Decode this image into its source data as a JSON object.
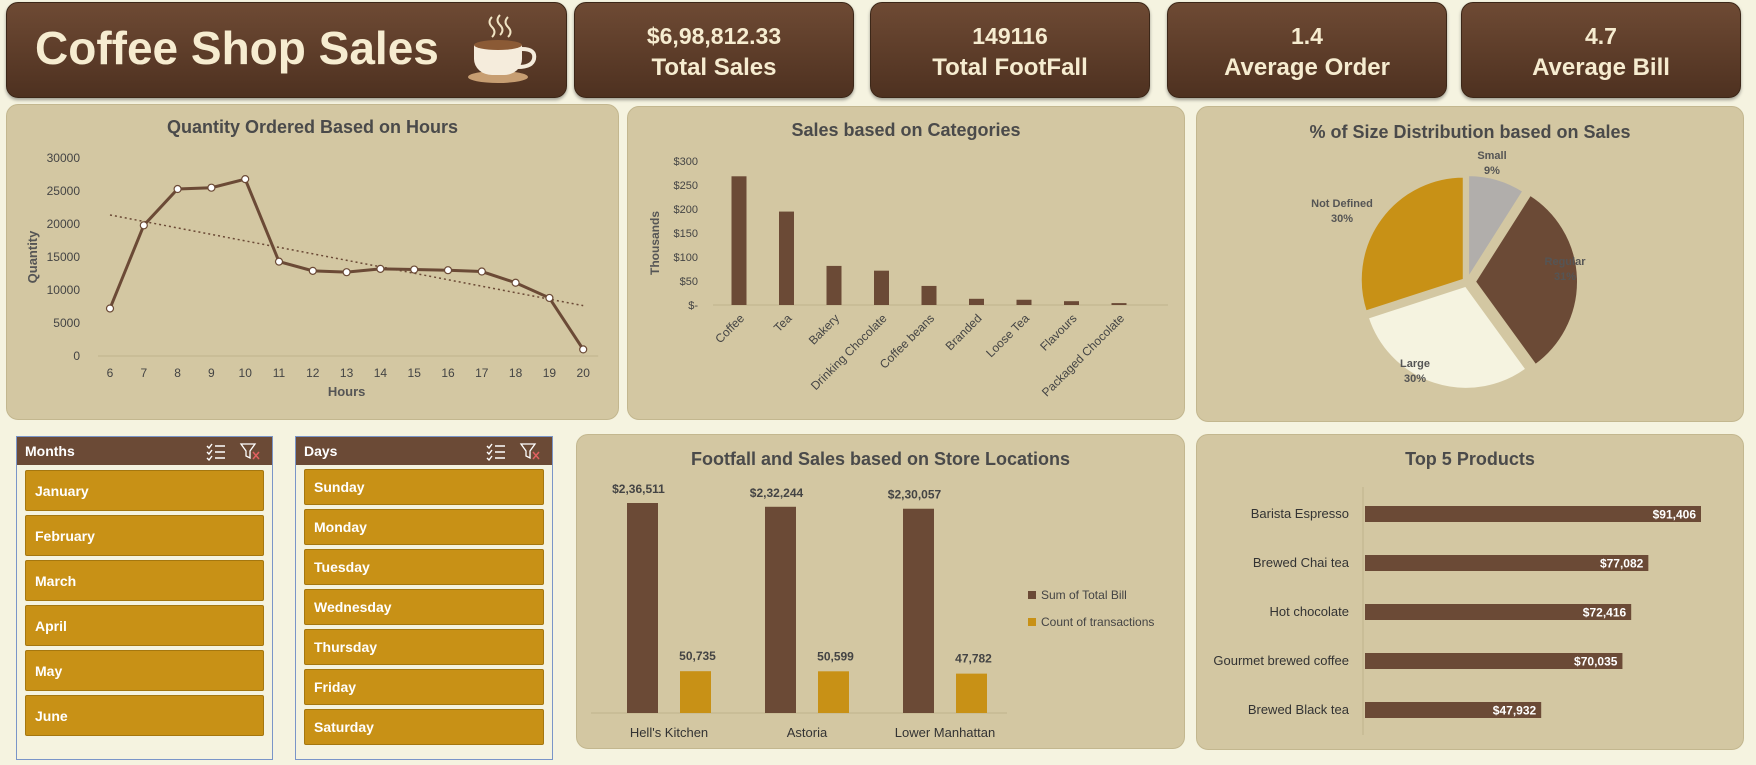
{
  "header": {
    "title": "Coffee Shop Sales",
    "kpis": [
      {
        "value": "$6,98,812.33",
        "label": "Total Sales"
      },
      {
        "value": "149116",
        "label": "Total FootFall"
      },
      {
        "value": "1.4",
        "label": "Average Order"
      },
      {
        "value": "4.7",
        "label": "Average Bill"
      }
    ]
  },
  "colors": {
    "brown": "#6b4a36",
    "gold": "#c89116",
    "cream": "#f5f3e0",
    "grey": "#b1aeab",
    "panel": "#d3c7a2"
  },
  "chart_data": [
    {
      "type": "line",
      "title": "Quantity Ordered Based on Hours",
      "xlabel": "Hours",
      "ylabel": "Quantity",
      "x": [
        6,
        7,
        8,
        9,
        10,
        11,
        12,
        13,
        14,
        15,
        16,
        17,
        18,
        19,
        20
      ],
      "y": [
        7200,
        19800,
        25300,
        25500,
        26800,
        14300,
        12900,
        12700,
        13200,
        13100,
        13000,
        12800,
        11100,
        8800,
        1000
      ],
      "ylim": [
        0,
        30000
      ],
      "yticks": [
        "0",
        "5000",
        "10000",
        "15000",
        "20000",
        "25000",
        "30000"
      ],
      "trendline": "linear"
    },
    {
      "type": "bar",
      "title": "Sales based on Categories",
      "ylabel": "Thousands",
      "categories": [
        "Coffee",
        "Tea",
        "Bakery",
        "Drinking Chocolate",
        "Coffee beans",
        "Branded",
        "Loose Tea",
        "Flavours",
        "Packaged Chocolate"
      ],
      "values": [
        270,
        196,
        82,
        72,
        40,
        13,
        11,
        8,
        4
      ],
      "ylim": [
        0,
        300
      ],
      "yticks": [
        "$-",
        "$50",
        "$100",
        "$150",
        "$200",
        "$250",
        "$300"
      ]
    },
    {
      "type": "pie",
      "title": "% of Size Distribution based on Sales",
      "slices": [
        {
          "name": "Small",
          "pct_label": "9%",
          "value": 9
        },
        {
          "name": "Regular",
          "pct_label": "31%",
          "value": 31
        },
        {
          "name": "Large",
          "pct_label": "30%",
          "value": 30
        },
        {
          "name": "Not Defined",
          "pct_label": "30%",
          "value": 30
        }
      ]
    },
    {
      "type": "bar",
      "title": "Footfall and Sales based on Store Locations",
      "categories": [
        "Hell's Kitchen",
        "Astoria",
        "Lower Manhattan"
      ],
      "series": [
        {
          "name": "Sum of Total Bill",
          "values": [
            236511,
            232244,
            230057
          ],
          "labels": [
            "$2,36,511",
            "$2,32,244",
            "$2,30,057"
          ]
        },
        {
          "name": "Count of transactions",
          "values": [
            50735,
            50599,
            47782
          ],
          "labels": [
            "50,735",
            "50,599",
            "47,782"
          ]
        }
      ]
    },
    {
      "type": "bar",
      "orientation": "horizontal",
      "title": "Top 5 Products",
      "categories": [
        "Barista Espresso",
        "Brewed Chai tea",
        "Hot chocolate",
        "Gourmet brewed coffee",
        "Brewed Black tea"
      ],
      "values": [
        91406,
        77082,
        72416,
        70035,
        47932
      ],
      "labels": [
        "$91,406",
        "$77,082",
        "$72,416",
        "$70,035",
        "$47,932"
      ]
    }
  ],
  "slicers": {
    "months": {
      "title": "Months",
      "items": [
        "January",
        "February",
        "March",
        "April",
        "May",
        "June"
      ]
    },
    "days": {
      "title": "Days",
      "items": [
        "Sunday",
        "Monday",
        "Tuesday",
        "Wednesday",
        "Thursday",
        "Friday",
        "Saturday"
      ]
    }
  },
  "icons": {
    "title_icon": "coffee-cup-icon",
    "multiselect": "multi-select-icon",
    "clear_filter": "clear-filter-icon"
  }
}
